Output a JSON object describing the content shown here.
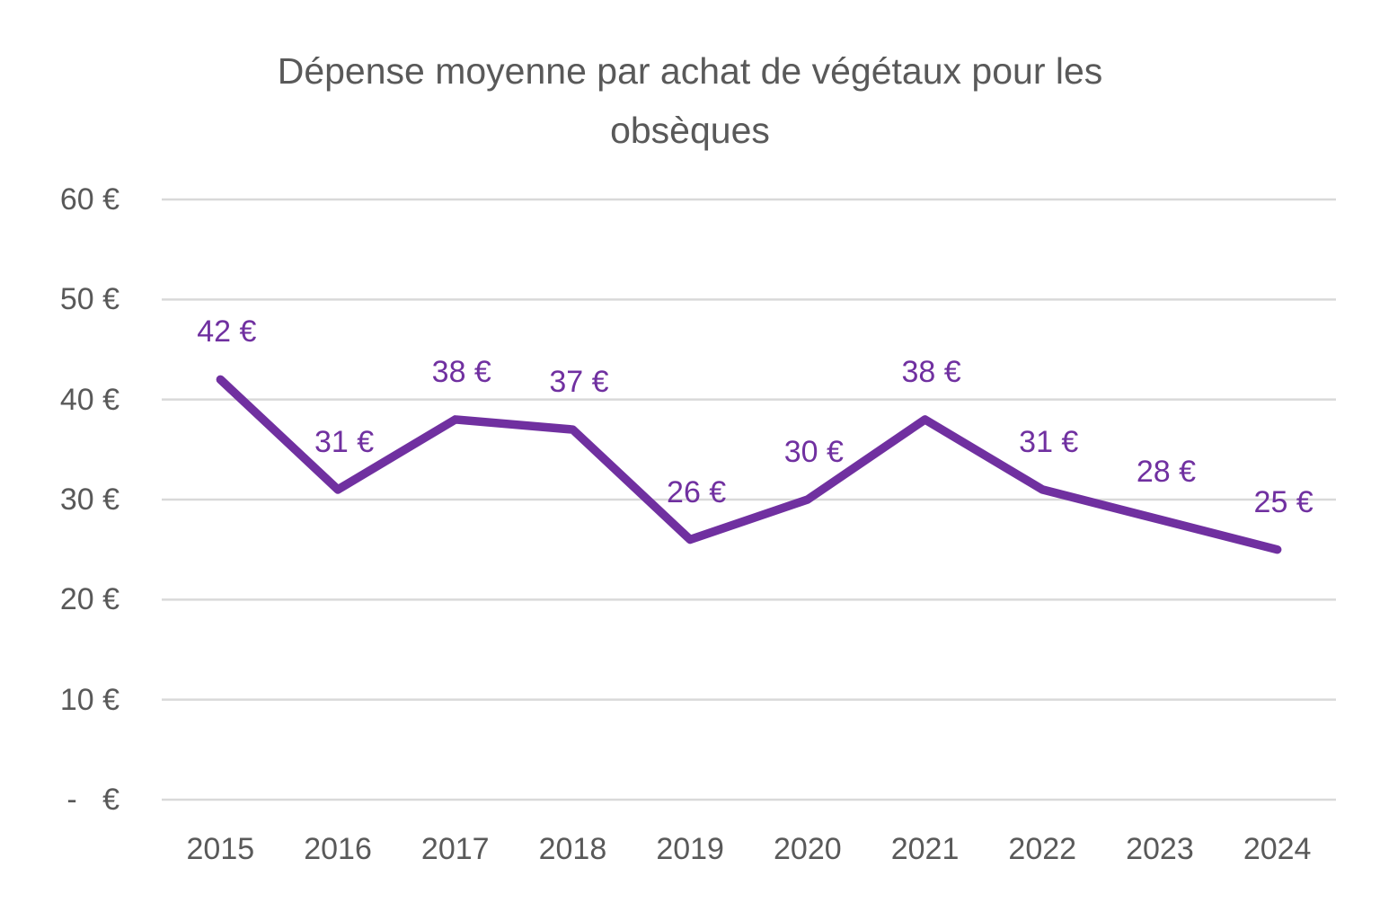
{
  "chart_data": {
    "type": "line",
    "title": "Dépense moyenne par achat de végétaux pour les obsèques",
    "categories": [
      "2015",
      "2016",
      "2017",
      "2018",
      "2019",
      "2020",
      "2021",
      "2022",
      "2023",
      "2024"
    ],
    "series": [
      {
        "values": [
          42,
          31,
          38,
          37,
          26,
          30,
          38,
          31,
          28,
          25
        ],
        "point_labels": [
          "42 €",
          "31 €",
          "38 €",
          "37 €",
          "26 €",
          "30 €",
          "38 €",
          "31 €",
          "28 €",
          "25 €"
        ],
        "color": "#7030A0"
      }
    ],
    "xlabel": "",
    "ylabel": "",
    "ylim": [
      0,
      60
    ],
    "yticks": [
      {
        "value": 60,
        "label": "60 €"
      },
      {
        "value": 50,
        "label": "50 €"
      },
      {
        "value": 40,
        "label": "40 €"
      },
      {
        "value": 30,
        "label": "30 €"
      },
      {
        "value": 20,
        "label": "20 €"
      },
      {
        "value": 10,
        "label": "10 €"
      },
      {
        "value": 0,
        "label": "-   €"
      }
    ],
    "grid": "horizontal",
    "legend": "none"
  },
  "colors": {
    "background": "#FFFFFF",
    "title_text": "#595959",
    "axis_text": "#595959",
    "gridline": "#D9D9D9",
    "series_line": "#7030A0",
    "data_label": "#7030A0"
  }
}
